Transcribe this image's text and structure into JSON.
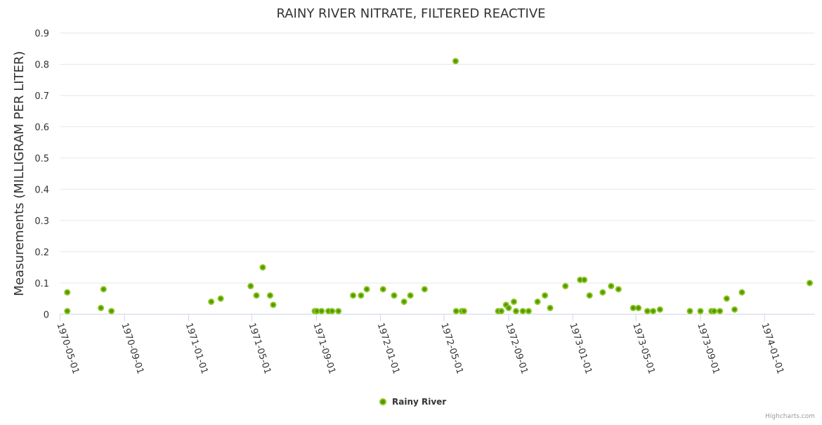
{
  "chart_data": {
    "type": "scatter",
    "title": "RAINY RIVER NITRATE, FILTERED REACTIVE",
    "xlabel": "",
    "ylabel": "Measurements (MILLIGRAM PER LITER)",
    "ylim": [
      0,
      0.9
    ],
    "yticks": [
      "0",
      "0.1",
      "0.2",
      "0.3",
      "0.4",
      "0.5",
      "0.6",
      "0.7",
      "0.8",
      "0.9"
    ],
    "xlim": [
      "1970-05-01",
      "1974-04-07"
    ],
    "xticks": [
      "1970-05-01",
      "1970-09-01",
      "1971-01-01",
      "1971-05-01",
      "1971-09-01",
      "1972-01-01",
      "1972-05-01",
      "1972-09-01",
      "1973-01-01",
      "1973-05-01",
      "1973-09-01",
      "1974-01-01"
    ],
    "grid": true,
    "legend": {
      "position": "bottom-center",
      "entries": [
        "Rainy River"
      ]
    },
    "credits": "Highcharts.com",
    "colors": {
      "marker_fill": "#4f9a00",
      "marker_stroke": "#8cc320",
      "grid": "#e6e6e6",
      "axis": "#ccd6eb"
    },
    "series": [
      {
        "name": "Rainy River",
        "points": [
          [
            "1970-05-15",
            0.07
          ],
          [
            "1970-05-15",
            0.01
          ],
          [
            "1970-07-18",
            0.02
          ],
          [
            "1970-07-23",
            0.08
          ],
          [
            "1970-08-07",
            0.01
          ],
          [
            "1971-02-13",
            0.04
          ],
          [
            "1971-03-03",
            0.05
          ],
          [
            "1971-04-29",
            0.09
          ],
          [
            "1971-05-10",
            0.06
          ],
          [
            "1971-05-22",
            0.15
          ],
          [
            "1971-06-05",
            0.06
          ],
          [
            "1971-06-11",
            0.03
          ],
          [
            "1971-08-29",
            0.01
          ],
          [
            "1971-09-02",
            0.01
          ],
          [
            "1971-09-11",
            0.01
          ],
          [
            "1971-09-24",
            0.01
          ],
          [
            "1971-10-01",
            0.01
          ],
          [
            "1971-10-13",
            0.01
          ],
          [
            "1971-11-10",
            0.06
          ],
          [
            "1971-11-25",
            0.06
          ],
          [
            "1971-12-06",
            0.08
          ],
          [
            "1972-01-06",
            0.08
          ],
          [
            "1972-01-27",
            0.06
          ],
          [
            "1972-02-15",
            0.04
          ],
          [
            "1972-02-27",
            0.06
          ],
          [
            "1972-03-25",
            0.08
          ],
          [
            "1972-05-23",
            0.81
          ],
          [
            "1972-05-24",
            0.01
          ],
          [
            "1972-06-04",
            0.01
          ],
          [
            "1972-06-08",
            0.01
          ],
          [
            "1972-08-12",
            0.01
          ],
          [
            "1972-08-18",
            0.01
          ],
          [
            "1972-08-27",
            0.03
          ],
          [
            "1972-09-01",
            0.02
          ],
          [
            "1972-09-11",
            0.04
          ],
          [
            "1972-09-15",
            0.01
          ],
          [
            "1972-09-28",
            0.01
          ],
          [
            "1972-10-09",
            0.01
          ],
          [
            "1972-10-26",
            0.04
          ],
          [
            "1972-11-09",
            0.06
          ],
          [
            "1972-11-19",
            0.02
          ],
          [
            "1972-12-18",
            0.09
          ],
          [
            "1973-01-15",
            0.11
          ],
          [
            "1973-01-23",
            0.11
          ],
          [
            "1973-02-02",
            0.06
          ],
          [
            "1973-02-27",
            0.07
          ],
          [
            "1973-03-15",
            0.09
          ],
          [
            "1973-03-29",
            0.08
          ],
          [
            "1973-04-26",
            0.02
          ],
          [
            "1973-05-06",
            0.02
          ],
          [
            "1973-05-23",
            0.01
          ],
          [
            "1973-06-03",
            0.01
          ],
          [
            "1973-06-16",
            0.015
          ],
          [
            "1973-08-12",
            0.01
          ],
          [
            "1973-09-01",
            0.01
          ],
          [
            "1973-09-22",
            0.01
          ],
          [
            "1973-09-27",
            0.01
          ],
          [
            "1973-10-08",
            0.01
          ],
          [
            "1973-10-21",
            0.05
          ],
          [
            "1973-11-05",
            0.015
          ],
          [
            "1973-11-19",
            0.07
          ],
          [
            "1974-03-28",
            0.1
          ]
        ]
      }
    ]
  }
}
